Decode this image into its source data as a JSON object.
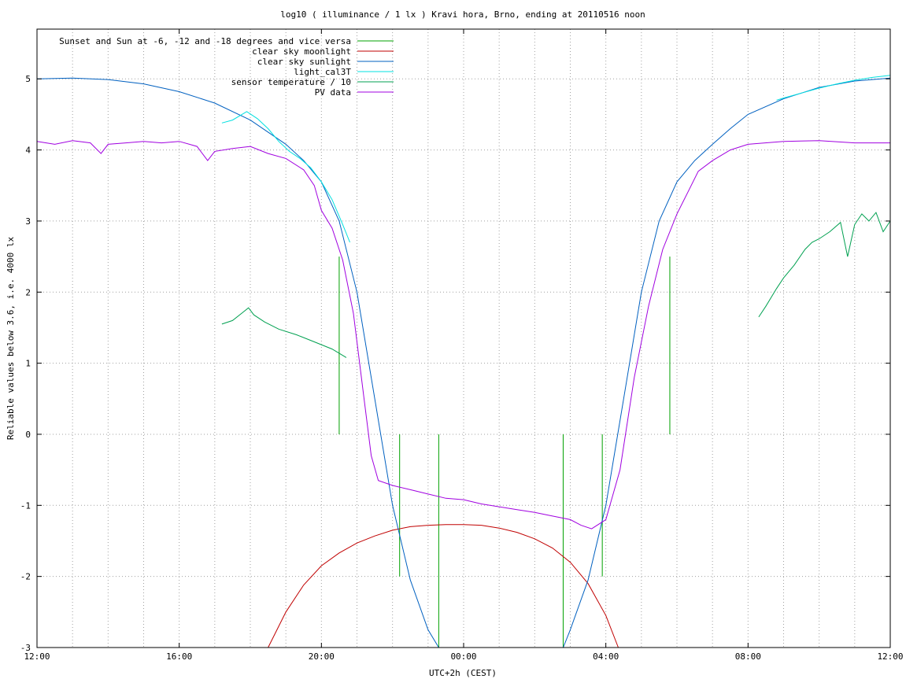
{
  "chart_data": {
    "type": "line",
    "title": "log10 ( illuminance / 1 lx ) Kravi hora, Brno, ending at 20110516 noon",
    "xlabel": "UTC+2h (CEST)",
    "ylabel": "Reliable values below 3.6, i.e. 4000 lx",
    "xlim": [
      12,
      36
    ],
    "ylim": [
      -3,
      5.7
    ],
    "x_ticks": [
      {
        "value": 12,
        "label": "12:00"
      },
      {
        "value": 16,
        "label": "16:00"
      },
      {
        "value": 20,
        "label": "20:00"
      },
      {
        "value": 24,
        "label": "00:00"
      },
      {
        "value": 28,
        "label": "04:00"
      },
      {
        "value": 32,
        "label": "08:00"
      },
      {
        "value": 36,
        "label": "12:00"
      }
    ],
    "x_minor_grid_step": 1,
    "y_ticks": [
      -3,
      -2,
      -1,
      0,
      1,
      2,
      3,
      4,
      5
    ],
    "grid": true,
    "legend_position": "top-left",
    "series": [
      {
        "name": "Sunset and Sun at -6, -12 and -18 degrees and vice versa",
        "color": "#00a000",
        "style": "impulses",
        "base": 0,
        "points": [
          [
            20.5,
            2.5
          ],
          [
            21.15,
            0
          ],
          [
            22.2,
            -2
          ],
          [
            23.3,
            -3
          ],
          [
            26.8,
            -3
          ],
          [
            27.9,
            -2
          ],
          [
            29.15,
            0
          ],
          [
            29.8,
            2.5
          ]
        ]
      },
      {
        "name": "clear sky moonlight",
        "color": "#c00000",
        "x": [
          18.5,
          19.0,
          19.5,
          20.0,
          20.5,
          21.0,
          21.5,
          22.0,
          22.5,
          23.0,
          23.5,
          24.0,
          24.5,
          25.0,
          25.5,
          26.0,
          26.5,
          27.0,
          27.5,
          28.0,
          28.35
        ],
        "y": [
          -3.0,
          -2.5,
          -2.12,
          -1.85,
          -1.67,
          -1.53,
          -1.43,
          -1.35,
          -1.3,
          -1.28,
          -1.27,
          -1.27,
          -1.28,
          -1.32,
          -1.38,
          -1.47,
          -1.6,
          -1.8,
          -2.1,
          -2.55,
          -3.0
        ]
      },
      {
        "name": "clear sky sunlight",
        "color": "#0060c0",
        "x": [
          12.0,
          13.0,
          14.0,
          15.0,
          16.0,
          17.0,
          18.0,
          19.0,
          19.5,
          20.0,
          20.5,
          21.0,
          21.5,
          22.0,
          22.5,
          23.0,
          23.3,
          26.8,
          27.0,
          27.5,
          28.0,
          28.5,
          29.0,
          29.5,
          30.0,
          30.5,
          31.0,
          31.5,
          32.0,
          33.0,
          34.0,
          35.0,
          36.0
        ],
        "y": [
          5.0,
          5.01,
          4.99,
          4.93,
          4.82,
          4.66,
          4.42,
          4.08,
          3.85,
          3.55,
          3.0,
          2.0,
          0.5,
          -1.0,
          -2.05,
          -2.75,
          -3.0,
          -3.0,
          -2.75,
          -2.05,
          -1.0,
          0.5,
          2.0,
          3.0,
          3.55,
          3.85,
          4.08,
          4.3,
          4.5,
          4.72,
          4.88,
          4.97,
          5.01
        ]
      },
      {
        "name": "light_cal3T",
        "color": "#00e0e0",
        "x": [
          17.2,
          17.5,
          17.9,
          18.2,
          18.5,
          18.8,
          19.1,
          19.4,
          19.7,
          20.0,
          20.3,
          20.6,
          20.8
        ],
        "y": [
          4.38,
          4.42,
          4.54,
          4.44,
          4.3,
          4.12,
          3.98,
          3.88,
          3.75,
          3.55,
          3.3,
          2.95,
          2.7
        ],
        "x2": [
          32.8,
          33.0,
          33.5,
          34.0,
          34.5,
          35.0,
          35.5,
          36.0
        ],
        "y2": [
          4.7,
          4.73,
          4.8,
          4.87,
          4.93,
          4.98,
          5.02,
          5.05
        ]
      },
      {
        "name": "sensor temperature / 10",
        "color": "#00a050",
        "x": [
          17.2,
          17.5,
          17.8,
          17.95,
          18.1,
          18.4,
          18.8,
          19.3,
          19.8,
          20.3,
          20.7
        ],
        "y": [
          1.55,
          1.6,
          1.72,
          1.78,
          1.68,
          1.58,
          1.48,
          1.4,
          1.3,
          1.2,
          1.08
        ],
        "x2": [
          32.3,
          32.5,
          32.8,
          33.0,
          33.3,
          33.6,
          33.8,
          34.0,
          34.3,
          34.6,
          34.8,
          35.0,
          35.2,
          35.4,
          35.6,
          35.8,
          36.0
        ],
        "y2": [
          1.65,
          1.8,
          2.05,
          2.2,
          2.38,
          2.6,
          2.7,
          2.75,
          2.85,
          2.98,
          2.5,
          2.95,
          3.1,
          3.0,
          3.12,
          2.85,
          3.0
        ]
      },
      {
        "name": "PV data",
        "color": "#a000e0",
        "x": [
          12.0,
          12.5,
          13.0,
          13.5,
          13.8,
          14.0,
          14.5,
          15.0,
          15.5,
          16.0,
          16.5,
          16.8,
          17.0,
          17.5,
          18.0,
          18.5,
          19.0,
          19.5,
          19.8,
          20.0,
          20.3,
          20.6,
          20.9,
          21.2,
          21.4,
          21.6,
          22.0,
          22.5,
          23.0,
          23.5,
          24.0,
          24.5,
          25.0,
          25.5,
          26.0,
          26.5,
          27.0,
          27.3,
          27.6,
          28.0,
          28.4,
          28.8,
          29.2,
          29.6,
          30.0,
          30.3,
          30.6,
          31.0,
          31.5,
          32.0,
          33.0,
          34.0,
          35.0,
          36.0
        ],
        "y": [
          4.12,
          4.08,
          4.13,
          4.1,
          3.95,
          4.08,
          4.1,
          4.12,
          4.1,
          4.12,
          4.05,
          3.85,
          3.98,
          4.02,
          4.05,
          3.95,
          3.88,
          3.72,
          3.5,
          3.15,
          2.9,
          2.45,
          1.7,
          0.5,
          -0.3,
          -0.65,
          -0.72,
          -0.78,
          -0.84,
          -0.9,
          -0.92,
          -0.98,
          -1.02,
          -1.06,
          -1.1,
          -1.15,
          -1.2,
          -1.28,
          -1.33,
          -1.2,
          -0.5,
          0.8,
          1.8,
          2.6,
          3.1,
          3.4,
          3.7,
          3.85,
          4.0,
          4.08,
          4.12,
          4.13,
          4.1,
          4.1
        ]
      }
    ]
  }
}
